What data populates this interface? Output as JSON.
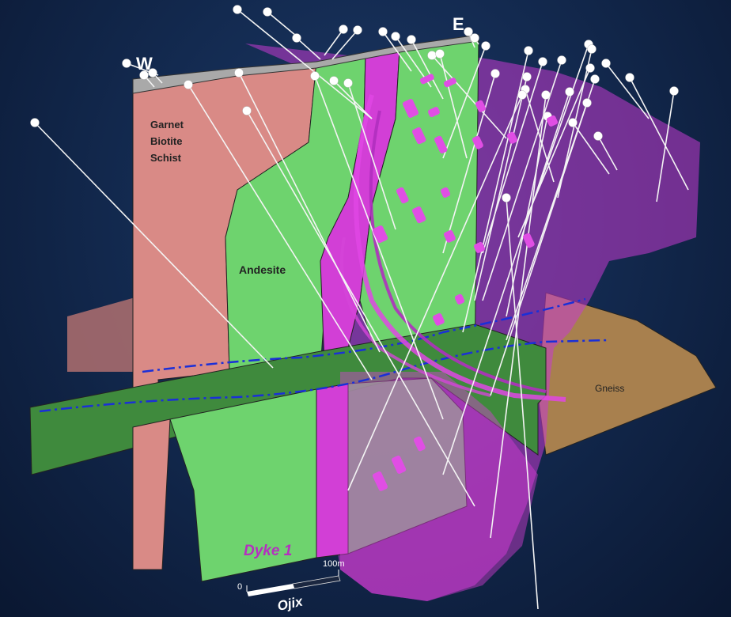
{
  "orientation": {
    "west": "W",
    "east": "E"
  },
  "units": {
    "schist": "Garnet\nBiotite\nSchist",
    "andesite": "Andesite",
    "gneiss": "Gneiss",
    "dyke": "Dyke 1"
  },
  "scale_bar": {
    "start": "0",
    "end": "100m"
  },
  "logo": "Ojix",
  "colors": {
    "schist": "#d98a86",
    "andesite": "#6ed36e",
    "dyke": "#d23fd6",
    "gneiss": "#a8804e",
    "horizontal_plane": "#3f8a3d",
    "fault_line": "#1a2fd8",
    "drillhole": "#f4f4f4"
  },
  "icons": [
    "drillhole-collar-icon",
    "scale-bar-icon",
    "logo-icon"
  ]
}
